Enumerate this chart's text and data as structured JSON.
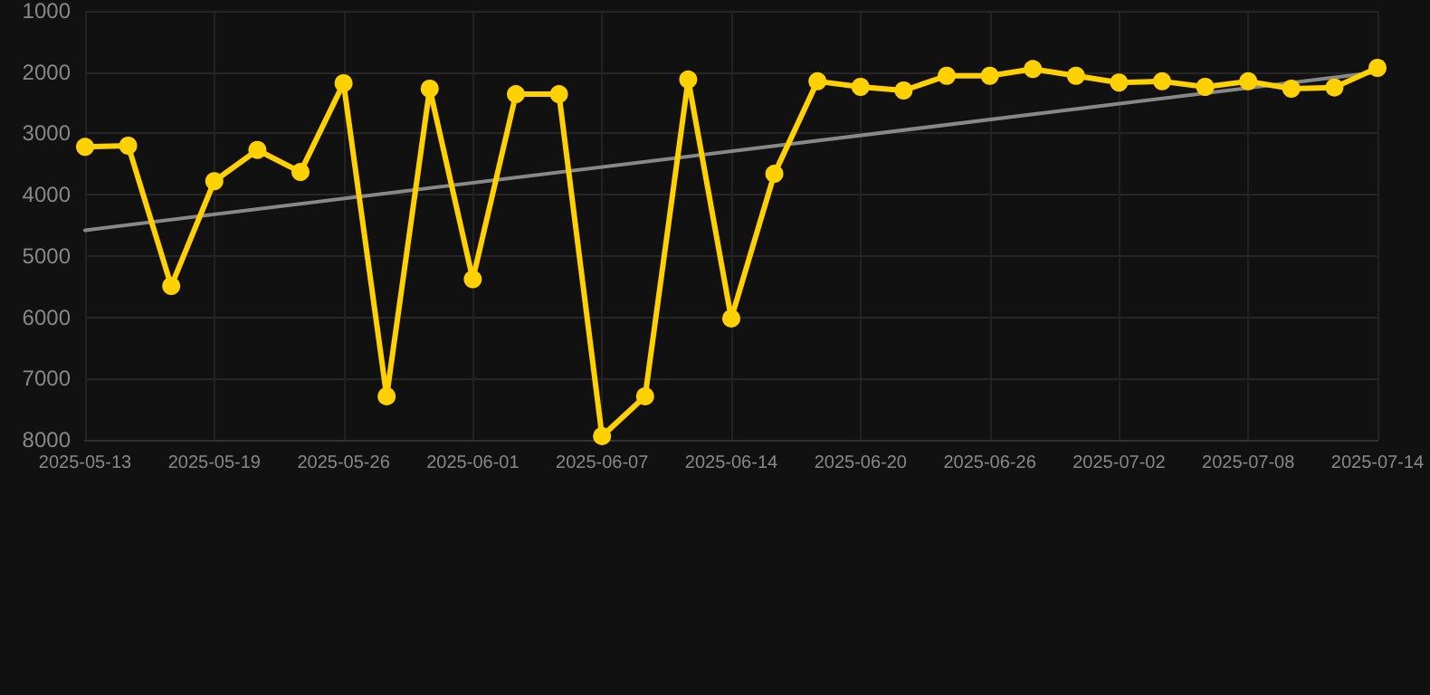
{
  "chart_data": {
    "type": "line",
    "categories": [
      "2025-05-13",
      null,
      null,
      "2025-05-19",
      null,
      null,
      "2025-05-26",
      null,
      null,
      "2025-06-01",
      null,
      null,
      "2025-06-07",
      null,
      null,
      "2025-06-14",
      null,
      null,
      "2025-06-20",
      null,
      null,
      "2025-06-26",
      null,
      null,
      "2025-07-02",
      null,
      null,
      "2025-07-08",
      null,
      null,
      "2025-07-14"
    ],
    "series": [
      {
        "color": "#ffd100",
        "values": [
          3220,
          3200,
          5490,
          3780,
          3270,
          3630,
          2180,
          7290,
          2270,
          5380,
          2360,
          2360,
          7940,
          7290,
          2120,
          6020,
          3660,
          2150,
          2240,
          2300,
          2060,
          2060,
          1950,
          2060,
          2170,
          2150,
          2240,
          2150,
          2270,
          2250,
          1930
        ]
      },
      {
        "type": "line",
        "color": "#888888",
        "marker": "none",
        "values": [
          4580,
          null,
          null,
          null,
          null,
          null,
          null,
          null,
          null,
          null,
          null,
          null,
          null,
          null,
          null,
          null,
          null,
          null,
          null,
          null,
          null,
          null,
          null,
          null,
          null,
          null,
          null,
          null,
          null,
          null,
          2000
        ]
      }
    ],
    "ylim": [
      8000,
      1000
    ],
    "yticks": [
      1000,
      2000,
      3000,
      4000,
      5000,
      6000,
      7000,
      8000
    ],
    "grid": true,
    "marker": "circle",
    "line_style": "solid"
  }
}
